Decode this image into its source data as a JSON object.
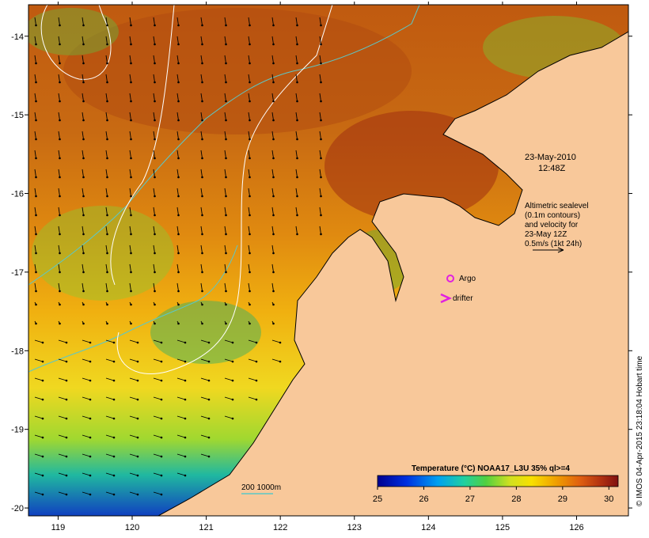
{
  "chart_data": {
    "type": "heatmap",
    "xlim": [
      118.6,
      126.7
    ],
    "ylim": [
      -20.1,
      -13.6
    ],
    "x_ticks": [
      "119",
      "120",
      "121",
      "122",
      "123",
      "124",
      "125",
      "126"
    ],
    "y_ticks": [
      "-14",
      "-15",
      "-16",
      "-17",
      "-18",
      "-19",
      "-20"
    ],
    "colorbar": {
      "title": "Temperature (°C) NOAA17_L3U 35% ql>=4",
      "ticks": [
        "25",
        "26",
        "27",
        "28",
        "29",
        "30"
      ],
      "range": [
        25,
        30.2
      ]
    },
    "annotations": {
      "datetime_line1": "23-May-2010",
      "datetime_line2": "12:48Z",
      "sealevel_lines": [
        "Altimetric sealevel",
        "(0.1m contours)",
        "and velocity for",
        "23-May 12Z",
        "0.5m/s (1kt 24h)"
      ],
      "argo_label": "Argo",
      "drifter_label": "drifter",
      "bathymetry_label": "200  1000m",
      "credit": "© IMOS 04-Apr-2015 23:18:04 Hobart time"
    },
    "velocity_reference_mps": 0.5
  },
  "colors": {
    "land": "#f8c89a",
    "coast": "#000000",
    "contour": "#ffffff",
    "bathy": "#5bc8c8",
    "argo": "#e020e0",
    "drifter": "#e020e0"
  }
}
